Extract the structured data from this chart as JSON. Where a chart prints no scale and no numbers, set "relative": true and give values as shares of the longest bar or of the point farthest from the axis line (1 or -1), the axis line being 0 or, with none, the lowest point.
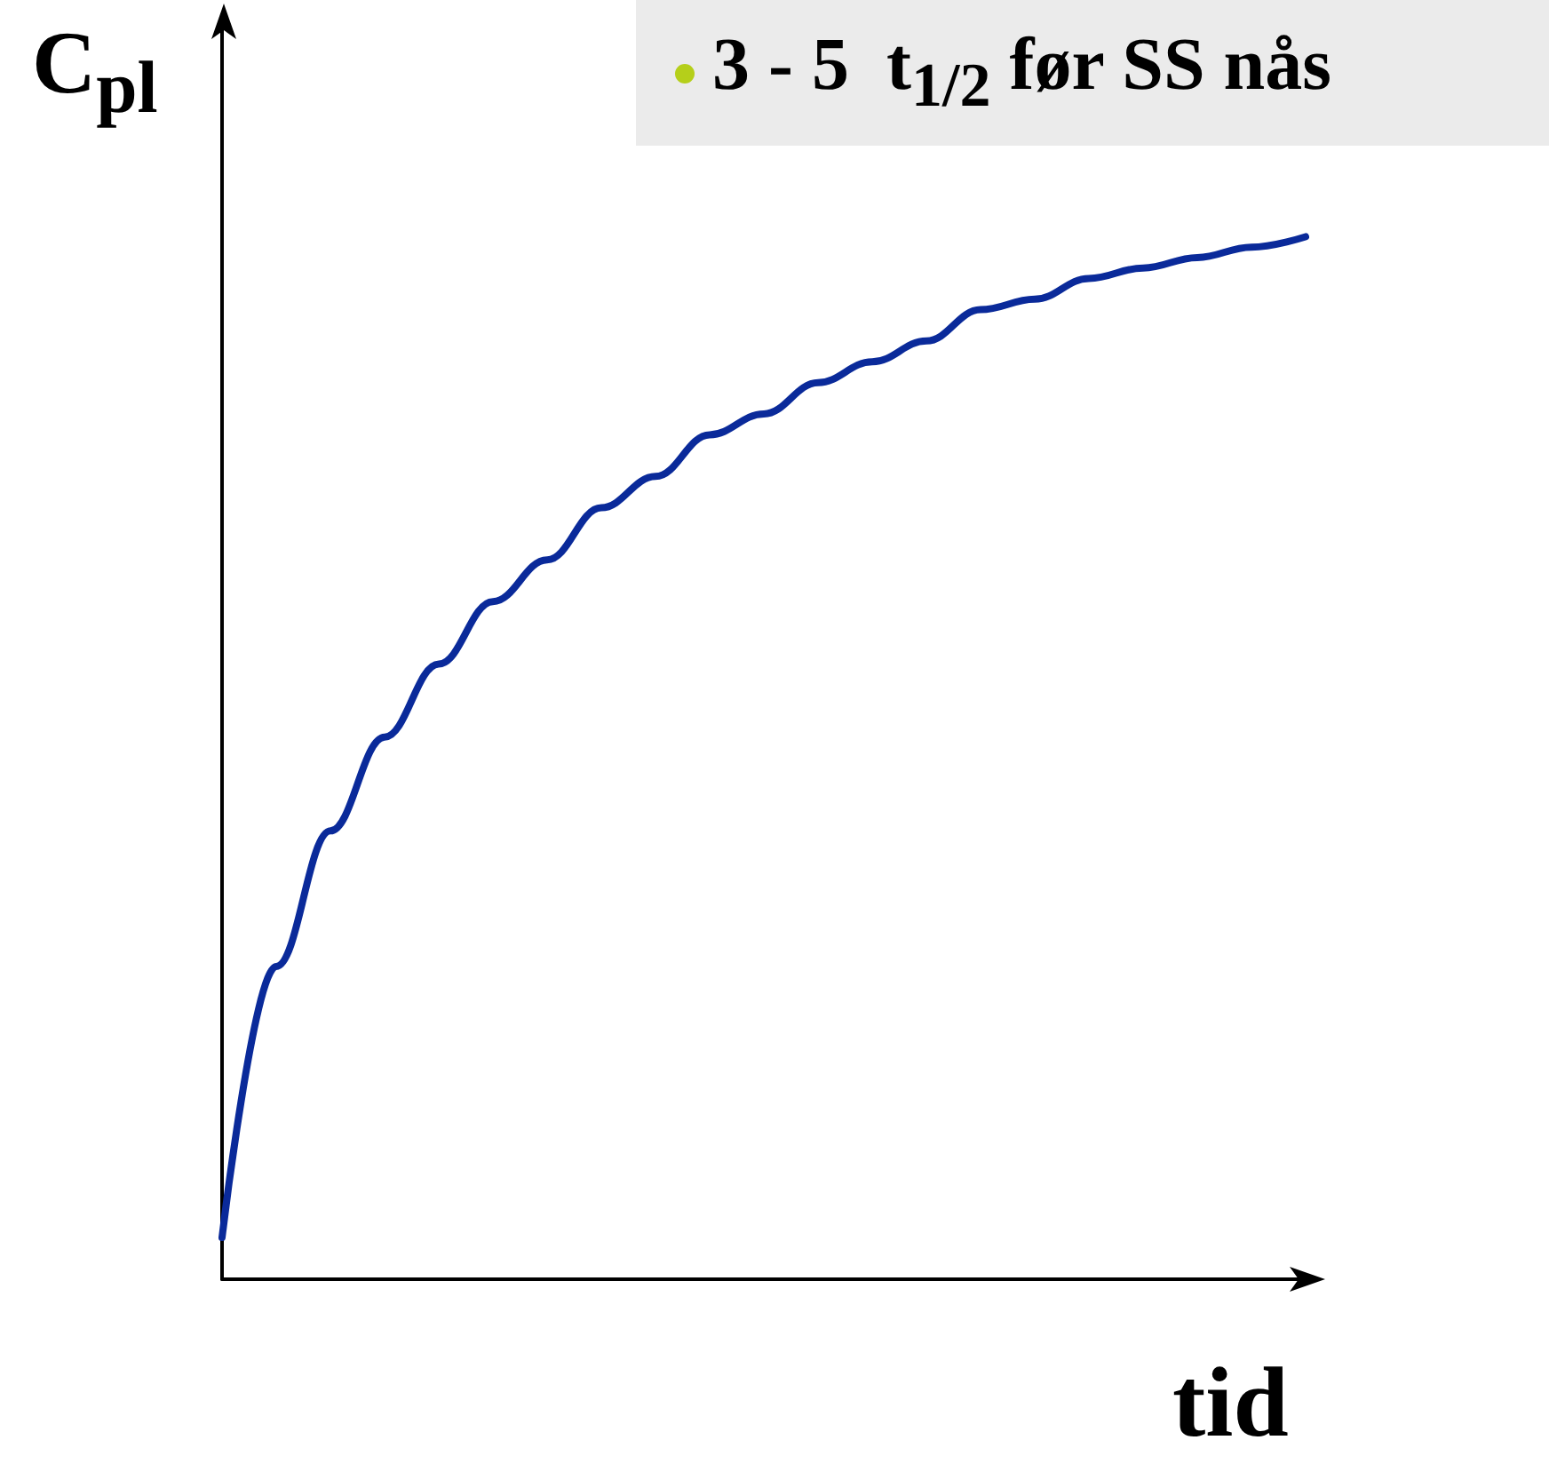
{
  "chart_data": {
    "type": "line",
    "relative": true,
    "xlabel": "tid",
    "ylabel": "C$_{pl}$",
    "annotations": [
      "3 - 5  t$_{1/2}$ før SS nås"
    ],
    "categories": [
      null,
      null,
      null,
      null,
      null,
      null,
      null,
      null,
      null,
      null,
      null,
      null,
      null,
      null,
      null,
      null,
      null,
      null,
      null,
      null,
      null
    ],
    "series": [
      {
        "color": "#0a2a9a",
        "values": [
          0.04,
          0.3,
          0.43,
          0.52,
          0.59,
          0.65,
          0.69,
          0.74,
          0.77,
          0.81,
          0.83,
          0.86,
          0.88,
          0.9,
          0.93,
          0.94,
          0.96,
          0.97,
          0.98,
          0.99,
          1
        ]
      }
    ],
    "grid": false,
    "marker": "none",
    "line_style": "solid"
  }
}
